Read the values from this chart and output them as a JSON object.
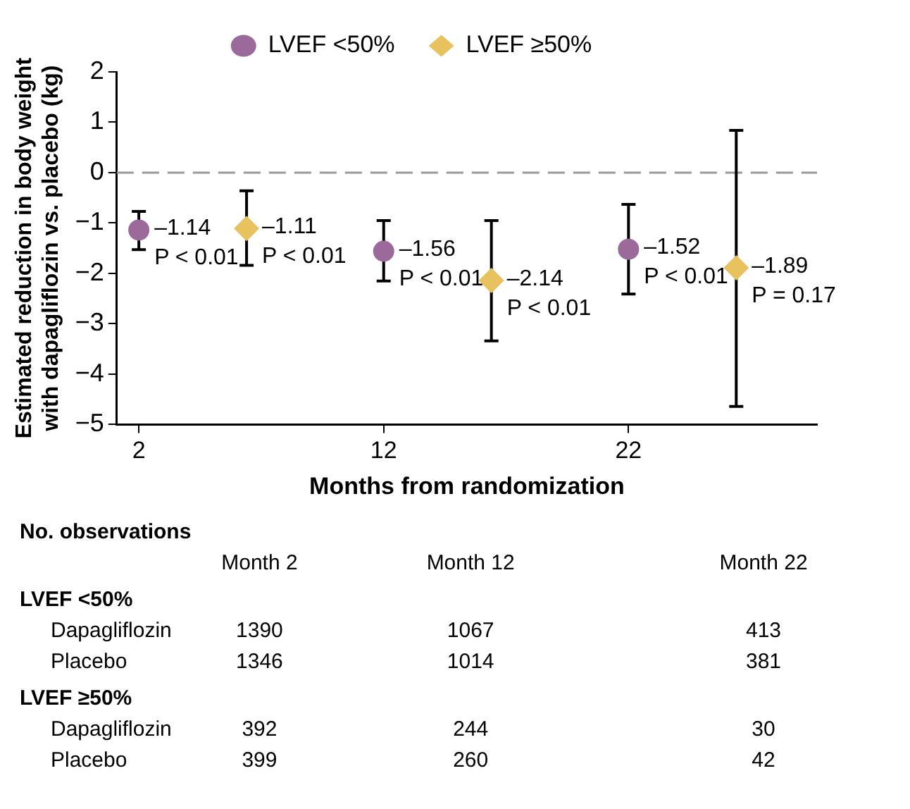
{
  "chart_data": {
    "type": "scatter",
    "xlabel": "Months from randomization",
    "ylabel": "Estimated reduction in body weight with dapagliflozin vs. placebo (kg)",
    "xlim": [
      1.1,
      29.7
    ],
    "xticks": [
      2,
      12,
      22
    ],
    "ylim": [
      -5,
      2
    ],
    "yticks": [
      2,
      1,
      0,
      -1,
      -2,
      -3,
      -4,
      -5
    ],
    "grid": false,
    "legend": "top",
    "series": [
      {
        "name": "LVEF <50%",
        "color": "#9b6a9b",
        "marker": "circle",
        "x": [
          2,
          12,
          22
        ],
        "values": [
          -1.14,
          -1.56,
          -1.52
        ],
        "errors": [
          [
            -1.53,
            -0.77
          ],
          [
            -2.15,
            -0.95
          ],
          [
            -2.41,
            -0.63
          ]
        ],
        "value_labels": [
          "–1.14",
          "–1.56",
          "–1.52"
        ]
      },
      {
        "name": "LVEF ≥50%",
        "color": "#e8c25f",
        "marker": "diamond",
        "x": [
          6.4,
          16.4,
          26.4
        ],
        "values": [
          -1.11,
          -2.14,
          -1.89
        ],
        "errors": [
          [
            -1.84,
            -0.36
          ],
          [
            -3.34,
            -0.95
          ],
          [
            -4.64,
            0.84
          ]
        ],
        "value_labels": [
          "–1.11",
          "–2.14",
          "–1.89"
        ]
      }
    ],
    "ref_lines": [
      {
        "axis": "y",
        "value": 0,
        "color": "#999999",
        "line_style": "dashed"
      }
    ],
    "annotations": [
      {
        "text": "P < 0.01",
        "x": 2,
        "y": -1.14
      },
      {
        "text": "P < 0.01",
        "x": 6.4,
        "y": -1.11
      },
      {
        "text": "P < 0.01",
        "x": 12,
        "y": -1.56
      },
      {
        "text": "P < 0.01",
        "x": 16.4,
        "y": -2.14
      },
      {
        "text": "P < 0.01",
        "x": 22,
        "y": -1.52
      },
      {
        "text": "P = 0.17",
        "x": 26.4,
        "y": -1.89
      },
      "No. observations",
      "\tMonth 2\tMonth 12\tMonth 22",
      "LVEF <50%",
      "Dapagliflozin\t1390\t1067\t413",
      "Placebo\t1346\t1014\t381",
      "LVEF ≥50%",
      "Dapagliflozin\t392\t244\t30",
      "Placebo\t399\t260\t42"
    ]
  }
}
